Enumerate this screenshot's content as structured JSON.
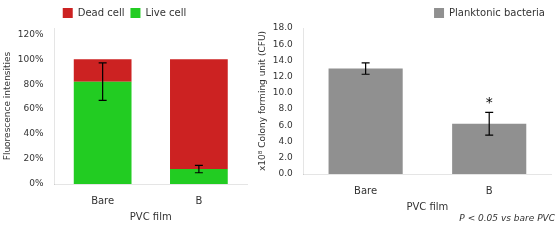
{
  "chart_data": [
    {
      "type": "bar",
      "stacked": true,
      "categories": [
        "Bare",
        "B"
      ],
      "series": [
        {
          "name": "Live cell",
          "color": "#22CC22",
          "values": [
            82,
            12
          ],
          "errors": [
            15,
            3
          ]
        },
        {
          "name": "Dead cell",
          "color": "#CC2222",
          "values": [
            18,
            88
          ]
        }
      ],
      "ylabel": "Fluorescence intensities",
      "xlabel": "PVC film",
      "ylim": [
        0,
        125
      ],
      "yticks": [
        {
          "value": 0,
          "label": "0%"
        },
        {
          "value": 20,
          "label": "20%"
        },
        {
          "value": 40,
          "label": "40%"
        },
        {
          "value": 60,
          "label": "60%"
        },
        {
          "value": 80,
          "label": "80%"
        },
        {
          "value": 100,
          "label": "100%"
        },
        {
          "value": 120,
          "label": "120%"
        }
      ],
      "grid": false,
      "legend": "top"
    },
    {
      "type": "bar",
      "categories": [
        "Bare",
        "B"
      ],
      "series": [
        {
          "name": "Planktonic bacteria",
          "color": "#909090",
          "values": [
            13.0,
            6.2
          ],
          "errors": [
            0.7,
            1.4
          ]
        }
      ],
      "ylabel": "x10⁸ Colony forming unit (CFU)",
      "xlabel": "PVC film",
      "ylim": [
        0,
        18
      ],
      "yticks": [
        {
          "value": 0,
          "label": "0.0"
        },
        {
          "value": 2,
          "label": "2.0"
        },
        {
          "value": 4,
          "label": "4.0"
        },
        {
          "value": 6,
          "label": "6.0"
        },
        {
          "value": 8,
          "label": "8.0"
        },
        {
          "value": 10,
          "label": "10.0"
        },
        {
          "value": 12,
          "label": "12.0"
        },
        {
          "value": 14,
          "label": "14.0"
        },
        {
          "value": 16,
          "label": "16.0"
        },
        {
          "value": 18,
          "label": "18.0"
        }
      ],
      "grid": false,
      "legend": "top right",
      "annotations": [
        {
          "text": "*",
          "x": "B"
        },
        {
          "text": "P < 0.05 vs bare PVC"
        }
      ]
    }
  ]
}
